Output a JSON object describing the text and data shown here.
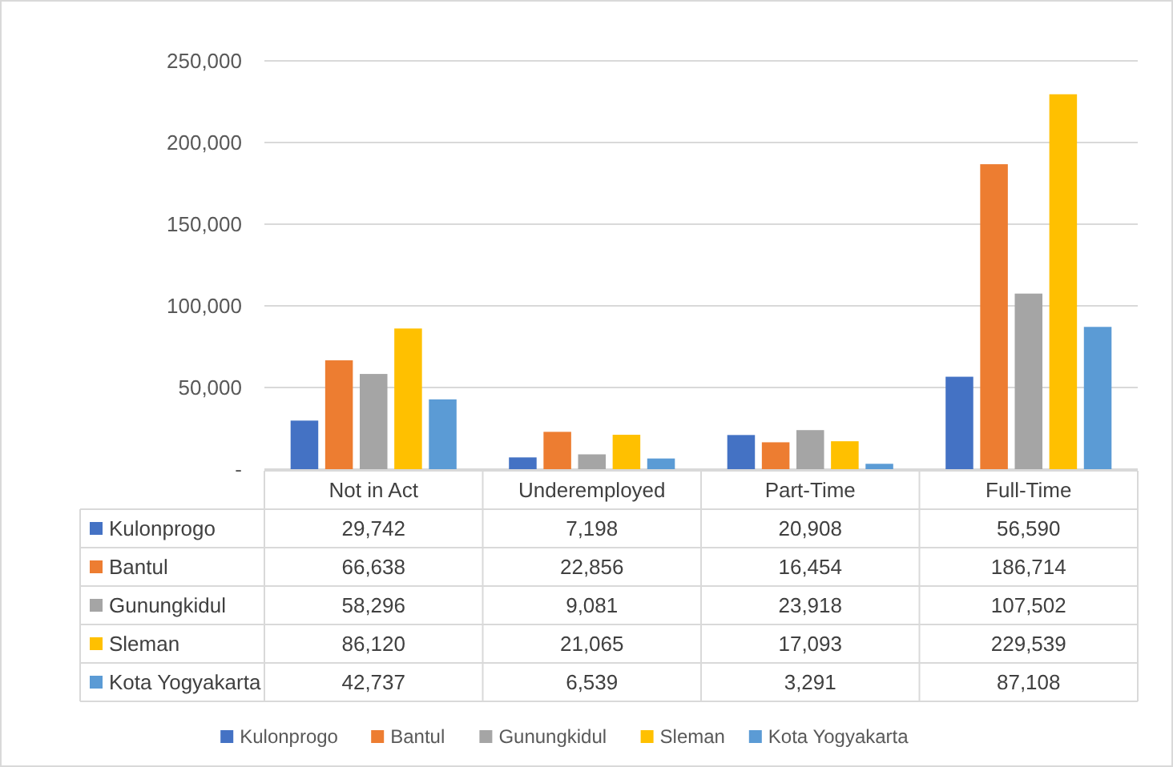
{
  "chart_data": {
    "type": "bar",
    "categories": [
      "Not in Act",
      "Underemployed",
      "Part-Time",
      "Full-Time"
    ],
    "series": [
      {
        "name": "Kulonprogo",
        "color": "#4472c4",
        "values": [
          29742,
          7198,
          20908,
          56590
        ],
        "value_labels": [
          "29,742",
          "7,198",
          "20,908",
          "56,590"
        ]
      },
      {
        "name": "Bantul",
        "color": "#ed7d31",
        "values": [
          66638,
          22856,
          16454,
          186714
        ],
        "value_labels": [
          "66,638",
          "22,856",
          "16,454",
          "186,714"
        ]
      },
      {
        "name": "Gunungkidul",
        "color": "#a5a5a5",
        "values": [
          58296,
          9081,
          23918,
          107502
        ],
        "value_labels": [
          "58,296",
          "9,081",
          "23,918",
          "107,502"
        ]
      },
      {
        "name": "Sleman",
        "color": "#ffc000",
        "values": [
          86120,
          21065,
          17093,
          229539
        ],
        "value_labels": [
          "86,120",
          "21,065",
          "17,093",
          "229,539"
        ]
      },
      {
        "name": "Kota Yogyakarta",
        "color": "#5b9bd5",
        "values": [
          42737,
          6539,
          3291,
          87108
        ],
        "value_labels": [
          "42,737",
          "6,539",
          "3,291",
          "87,108"
        ]
      }
    ],
    "ylim": [
      0,
      250000
    ],
    "yticks": [
      {
        "value": 0,
        "label": "-"
      },
      {
        "value": 50000,
        "label": "50,000"
      },
      {
        "value": 100000,
        "label": "100,000"
      },
      {
        "value": 150000,
        "label": "150,000"
      },
      {
        "value": 200000,
        "label": "200,000"
      },
      {
        "value": 250000,
        "label": "250,000"
      }
    ],
    "grid": "y",
    "legend": "bottom"
  }
}
